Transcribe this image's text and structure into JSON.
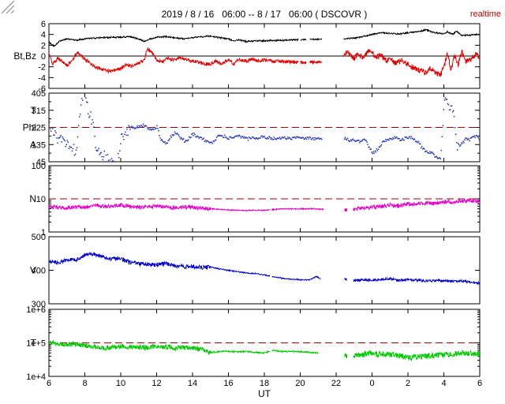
{
  "header": {
    "title": "2019 / 8 / 16   06:00 -- 8 / 17   06:00 ( DSCOVR )",
    "realtime_label": "realtime",
    "realtime_color": "#cc0000"
  },
  "x_axis": {
    "label": "UT",
    "range": [
      6,
      30
    ],
    "tick_hours": [
      6,
      8,
      10,
      12,
      14,
      16,
      18,
      20,
      22,
      24,
      26,
      28,
      30
    ],
    "tick_labels": [
      "6",
      "8",
      "10",
      "12",
      "14",
      "16",
      "18",
      "20",
      "22",
      "0",
      "2",
      "4",
      "6"
    ]
  },
  "colors": {
    "frame": "#000000",
    "ref_dash": "#990000",
    "bt": "#000000",
    "bz": "#ee0000",
    "phi": "#2233bb",
    "density": "#ee00cc",
    "speed": "#0000dd",
    "temperature": "#00cc00",
    "grip": "#888888"
  },
  "chart_data": [
    {
      "id": "magnetic-field",
      "type": "line",
      "log": false,
      "ylim": [
        -6,
        6
      ],
      "ytick_values": [
        6,
        4,
        2,
        0,
        -2,
        -4,
        -6
      ],
      "ytick_labels": [
        "6",
        "4",
        "2",
        "0",
        "-2",
        "-4",
        "-6"
      ],
      "minor_yticks": [],
      "zero_line": true,
      "ref_line": null,
      "left_labels": [
        {
          "text": "Bt,Bz",
          "align_value": 0
        }
      ],
      "series": [
        {
          "name": "Bt",
          "color_key": "bt",
          "style": "line",
          "x": [
            6,
            6.3,
            6.6,
            7,
            7.5,
            8,
            9,
            10,
            10.5,
            11,
            11.3,
            11.6,
            12,
            12.5,
            13,
            13.5,
            14,
            14.5,
            15,
            15.5,
            16,
            16.3,
            16.6,
            17,
            17.5,
            18,
            18.5,
            19,
            19.5,
            20,
            20.5,
            21,
            21.2,
            22.4,
            23,
            23.5,
            24,
            24.5,
            25,
            25.5,
            26,
            26.7,
            27,
            27.3,
            27.6,
            28,
            28.2,
            28.5,
            28.7,
            29,
            29.5,
            30
          ],
          "y": [
            2.6,
            1.8,
            2.8,
            3.2,
            2.9,
            3.2,
            3.4,
            3.5,
            3.6,
            3.2,
            2.7,
            3.1,
            3.5,
            3.6,
            3.4,
            3.2,
            3.4,
            3.6,
            3.7,
            3.4,
            3.2,
            2.8,
            3.0,
            2.7,
            2.8,
            2.8,
            2.9,
            2.9,
            3.0,
            3.0,
            3.1,
            3.1,
            3.1,
            3.2,
            3.3,
            3.6,
            4.0,
            4.3,
            4.2,
            4.1,
            4.3,
            4.6,
            4.9,
            4.5,
            4.3,
            4.1,
            4.5,
            4.0,
            4.6,
            3.8,
            3.9,
            4.0
          ],
          "gaps": [
            [
              19.9,
              20.0
            ],
            [
              20.35,
              20.5
            ],
            [
              21.2,
              22.4
            ]
          ],
          "noise": [
            [
              6,
              21.2,
              0.12
            ],
            [
              22.4,
              30,
              0.12
            ]
          ]
        },
        {
          "name": "Bz",
          "color_key": "bz",
          "style": "line",
          "x": [
            6,
            6.2,
            6.5,
            6.8,
            7,
            7.3,
            7.6,
            8,
            8.3,
            8.6,
            9,
            9.3,
            9.6,
            10,
            10.3,
            10.6,
            11,
            11.3,
            11.5,
            11.8,
            12,
            12.3,
            12.6,
            13,
            13.3,
            13.6,
            14,
            14.5,
            15,
            15.3,
            15.6,
            16,
            16.3,
            16.6,
            17,
            17.3,
            17.6,
            18,
            18.5,
            19,
            19.5,
            20,
            20.5,
            21,
            21.2,
            22.4,
            22.6,
            22.8,
            23,
            23.2,
            23.5,
            23.8,
            24,
            24.2,
            24.5,
            24.8,
            25,
            25.3,
            25.6,
            26,
            26.3,
            26.6,
            27,
            27.2,
            27.5,
            27.8,
            28,
            28.2,
            28.4,
            28.6,
            28.8,
            29,
            29.2,
            29.5,
            29.8,
            30
          ],
          "y": [
            0.5,
            -1.6,
            -0.4,
            -1.2,
            -1.8,
            -0.8,
            0.6,
            -0.6,
            -1.3,
            -2.1,
            -2.5,
            -2.8,
            -2.6,
            -2.4,
            -1.6,
            -1.9,
            -1.3,
            -0.8,
            1.4,
            0.4,
            -0.8,
            -1.1,
            -0.5,
            -0.7,
            -0.3,
            -0.6,
            -0.9,
            -1.3,
            -1.6,
            -0.9,
            -1.5,
            -0.7,
            -1.4,
            -0.6,
            -1.0,
            -0.5,
            -0.9,
            -0.7,
            -1.0,
            -1.0,
            -1.1,
            -1.2,
            -1.3,
            -1.1,
            -1.0,
            -0.3,
            0.7,
            0.2,
            -0.6,
            0.4,
            -0.4,
            0.9,
            0.7,
            -0.3,
            0.2,
            -0.9,
            -0.4,
            -1.3,
            -0.8,
            -1.6,
            -2.1,
            -2.6,
            -3.1,
            -2.3,
            -2.9,
            -3.6,
            -2.1,
            0.4,
            -2.6,
            0.2,
            -1.6,
            0.9,
            -1.1,
            -0.6,
            0.4,
            -0.4
          ],
          "gaps": [
            [
              19.9,
              20.0
            ],
            [
              20.35,
              20.5
            ],
            [
              21.2,
              22.4
            ]
          ],
          "noise": [
            [
              6,
              21.2,
              0.3
            ],
            [
              22.4,
              30,
              0.5
            ]
          ]
        }
      ]
    },
    {
      "id": "phi-angle",
      "type": "scatter",
      "log": false,
      "ylim": [
        45,
        405
      ],
      "ytick_values": [
        405,
        315,
        225,
        135,
        45
      ],
      "ytick_labels": [
        "405",
        "315",
        "225",
        "135",
        "45"
      ],
      "minor_yticks": [
        90,
        180,
        270,
        360
      ],
      "zero_line": false,
      "ref_line": 225,
      "left_labels": [
        {
          "text": "T",
          "align_value": 315
        },
        {
          "text": "Phi",
          "align_value": 225
        },
        {
          "text": "A",
          "align_value": 135
        }
      ],
      "series": [
        {
          "name": "Phi",
          "color_key": "phi",
          "style": "dots",
          "x": [
            6,
            6.3,
            6.6,
            7,
            7.3,
            7.5,
            7.8,
            8,
            8.2,
            8.4,
            8.6,
            8.8,
            9,
            9.3,
            9.6,
            9.8,
            10,
            10.3,
            10.6,
            10.8,
            11,
            11.3,
            11.6,
            12,
            12.2,
            12.5,
            12.8,
            13,
            13.3,
            13.6,
            14,
            14.3,
            14.6,
            15,
            15.5,
            16,
            16.3,
            16.6,
            17,
            17.5,
            18,
            18.5,
            19,
            19.5,
            20,
            20.5,
            21,
            21.2,
            22.4,
            22.7,
            23,
            23.3,
            23.6,
            23.8,
            24,
            24.3,
            24.6,
            25,
            25.3,
            25.6,
            26,
            26.3,
            26.6,
            26.8,
            27,
            27.3,
            27.5,
            27.8,
            28,
            28.15,
            28.3,
            28.5,
            28.7,
            29,
            29.2,
            29.4,
            29.6,
            29.8,
            30
          ],
          "y": [
            240,
            180,
            160,
            150,
            120,
            90,
            400,
            380,
            300,
            250,
            120,
            100,
            80,
            60,
            50,
            55,
            160,
            200,
            230,
            220,
            230,
            240,
            210,
            230,
            160,
            140,
            180,
            200,
            170,
            150,
            190,
            175,
            160,
            140,
            185,
            170,
            175,
            180,
            165,
            170,
            175,
            165,
            170,
            168,
            172,
            168,
            165,
            165,
            170,
            160,
            155,
            150,
            160,
            120,
            90,
            110,
            155,
            165,
            170,
            160,
            175,
            165,
            140,
            110,
            100,
            90,
            70,
            60,
            380,
            360,
            330,
            300,
            120,
            140,
            170,
            160,
            180,
            175,
            165
          ],
          "gaps": [
            [
              21.2,
              22.4
            ]
          ],
          "noise": [
            [
              6,
              10.5,
              30
            ],
            [
              10.5,
              21.2,
              8
            ],
            [
              22.4,
              27.9,
              8
            ],
            [
              27.9,
              28.8,
              25
            ],
            [
              28.8,
              30,
              8
            ]
          ]
        }
      ]
    },
    {
      "id": "density",
      "type": "line",
      "log": true,
      "ylim": [
        1,
        100
      ],
      "ytick_values": [
        100,
        10,
        1
      ],
      "ytick_labels": [
        "100",
        "10",
        "1"
      ],
      "minor_yticks": [],
      "zero_line": false,
      "ref_line": 10,
      "left_labels": [
        {
          "text": "N",
          "align_value": 10
        }
      ],
      "series": [
        {
          "name": "N",
          "color_key": "density",
          "style": "line",
          "x": [
            6,
            6.5,
            7,
            7.5,
            8,
            8.5,
            9,
            9.5,
            10,
            10.5,
            11,
            11.5,
            12,
            12.5,
            13,
            13.5,
            14,
            14.5,
            15,
            16,
            17,
            18,
            19,
            20,
            20.8,
            21.3,
            22.5,
            23,
            23.5,
            24,
            24.5,
            25,
            25.5,
            26,
            26.5,
            27,
            27.5,
            28,
            28.5,
            29,
            29.5,
            30
          ],
          "y": [
            6,
            5.5,
            5.2,
            5.8,
            5.5,
            6,
            6.2,
            5.8,
            6.5,
            6,
            5.5,
            5.8,
            6,
            5.6,
            5.4,
            5.6,
            5.5,
            5.2,
            5,
            4.6,
            4.5,
            4.5,
            5,
            5,
            5,
            4.8,
            4.5,
            5,
            5.2,
            5.5,
            5.8,
            6.5,
            6.2,
            7,
            6.8,
            7.5,
            7.2,
            8,
            8.2,
            8.8,
            9,
            8.2
          ],
          "gaps": [
            [
              18.3,
              18.4
            ],
            [
              21.3,
              22.45
            ],
            [
              22.6,
              22.95
            ]
          ],
          "noise": [
            [
              6,
              15,
              0.055
            ],
            [
              15,
              21.3,
              0.015
            ],
            [
              22.45,
              30,
              0.06
            ]
          ]
        }
      ]
    },
    {
      "id": "speed",
      "type": "line",
      "log": false,
      "ylim": [
        300,
        500
      ],
      "ytick_values": [
        500,
        400,
        300
      ],
      "ytick_labels": [
        "500",
        "400",
        "300"
      ],
      "minor_yticks": [],
      "zero_line": false,
      "ref_line": null,
      "left_labels": [
        {
          "text": "V",
          "align_value": 400
        }
      ],
      "series": [
        {
          "name": "V",
          "color_key": "speed",
          "style": "line",
          "x": [
            6,
            6.5,
            7,
            7.5,
            8,
            8.3,
            8.6,
            9,
            9.5,
            10,
            10.5,
            11,
            11.5,
            12,
            12.5,
            13,
            13.5,
            14,
            14.5,
            15,
            15.5,
            16,
            16.5,
            17,
            17.5,
            18,
            18.5,
            19,
            19.5,
            20,
            20.5,
            20.9,
            21.1,
            22.5,
            23,
            23.5,
            24,
            24.5,
            25,
            25.5,
            26,
            26.5,
            27,
            27.5,
            28,
            28.5,
            29,
            29.5,
            30
          ],
          "y": [
            428,
            422,
            432,
            430,
            445,
            450,
            446,
            440,
            432,
            436,
            424,
            420,
            417,
            416,
            420,
            414,
            410,
            412,
            408,
            410,
            404,
            400,
            396,
            392,
            390,
            386,
            381,
            376,
            373,
            372,
            371,
            382,
            375,
            374,
            368,
            372,
            370,
            372,
            375,
            370,
            372,
            370,
            368,
            370,
            368,
            366,
            368,
            365,
            362
          ],
          "gaps": [
            [
              18.3,
              18.42
            ],
            [
              21.15,
              22.45
            ],
            [
              22.6,
              22.95
            ]
          ],
          "noise": [
            [
              6,
              15,
              6
            ],
            [
              15,
              21.15,
              1.5
            ],
            [
              22.45,
              30,
              3.5
            ]
          ]
        }
      ]
    },
    {
      "id": "temperature",
      "type": "line",
      "log": true,
      "ylim": [
        10000,
        1000000
      ],
      "ytick_values": [
        1000000,
        100000,
        10000
      ],
      "ytick_labels": [
        "1e+6",
        "1e+5",
        "1e+4"
      ],
      "minor_yticks": [],
      "zero_line": false,
      "ref_line": 100000,
      "left_labels": [
        {
          "text": "T",
          "align_value": 100000
        }
      ],
      "series": [
        {
          "name": "T",
          "color_key": "temperature",
          "style": "line",
          "x": [
            6,
            6.5,
            7,
            7.5,
            8,
            8.5,
            9,
            9.5,
            10,
            10.5,
            11,
            11.5,
            12,
            12.5,
            13,
            13.5,
            14,
            14.5,
            15,
            15.5,
            16,
            16.5,
            17,
            17.5,
            18,
            18.5,
            19,
            19.5,
            20,
            20.5,
            20.9,
            22.5,
            23,
            23.5,
            24,
            24.5,
            25,
            25.5,
            26,
            26.5,
            27,
            27.5,
            28,
            28.5,
            29,
            29.5,
            30
          ],
          "y": [
            100000,
            95000,
            88000,
            90000,
            82000,
            78000,
            72000,
            70000,
            80000,
            76000,
            74000,
            72000,
            80000,
            76000,
            70000,
            74000,
            70000,
            65000,
            52000,
            55000,
            56000,
            54000,
            55000,
            52000,
            50000,
            60000,
            55000,
            56000,
            55000,
            52000,
            50000,
            40000,
            42000,
            45000,
            48000,
            46000,
            44000,
            42000,
            36000,
            38000,
            40000,
            42000,
            44000,
            46000,
            50000,
            48000,
            45000
          ],
          "gaps": [
            [
              18.3,
              18.42
            ],
            [
              21.0,
              22.45
            ],
            [
              22.6,
              22.95
            ]
          ],
          "noise": [
            [
              6,
              15,
              0.07
            ],
            [
              15,
              21,
              0.022
            ],
            [
              22.45,
              30,
              0.085
            ]
          ]
        }
      ]
    }
  ]
}
